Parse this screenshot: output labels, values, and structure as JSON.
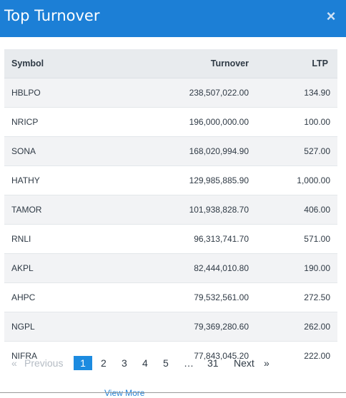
{
  "modal": {
    "title": "Top Turnover",
    "close_label": "×"
  },
  "table": {
    "headers": {
      "symbol": "Symbol",
      "turnover": "Turnover",
      "ltp": "LTP"
    },
    "rows": [
      {
        "symbol": "HBLPO",
        "turnover": "238,507,022.00",
        "ltp": "134.90"
      },
      {
        "symbol": "NRICP",
        "turnover": "196,000,000.00",
        "ltp": "100.00"
      },
      {
        "symbol": "SONA",
        "turnover": "168,020,994.90",
        "ltp": "527.00"
      },
      {
        "symbol": "HATHY",
        "turnover": "129,985,885.90",
        "ltp": "1,000.00"
      },
      {
        "symbol": "TAMOR",
        "turnover": "101,938,828.70",
        "ltp": "406.00"
      },
      {
        "symbol": "RNLI",
        "turnover": "96,313,741.70",
        "ltp": "571.00"
      },
      {
        "symbol": "AKPL",
        "turnover": "82,444,010.80",
        "ltp": "190.00"
      },
      {
        "symbol": "AHPC",
        "turnover": "79,532,561.00",
        "ltp": "272.50"
      },
      {
        "symbol": "NGPL",
        "turnover": "79,369,280.60",
        "ltp": "262.00"
      },
      {
        "symbol": "NIFRA",
        "turnover": "77,843,045.20",
        "ltp": "222.00"
      }
    ]
  },
  "pagination": {
    "prev_arrow": "«",
    "previous": "Previous",
    "pages": [
      "1",
      "2",
      "3",
      "4",
      "5"
    ],
    "ellipsis": "…",
    "last": "31",
    "next": "Next",
    "next_arrow": "»",
    "current": "1"
  },
  "footer": {
    "view_more": "View More"
  }
}
